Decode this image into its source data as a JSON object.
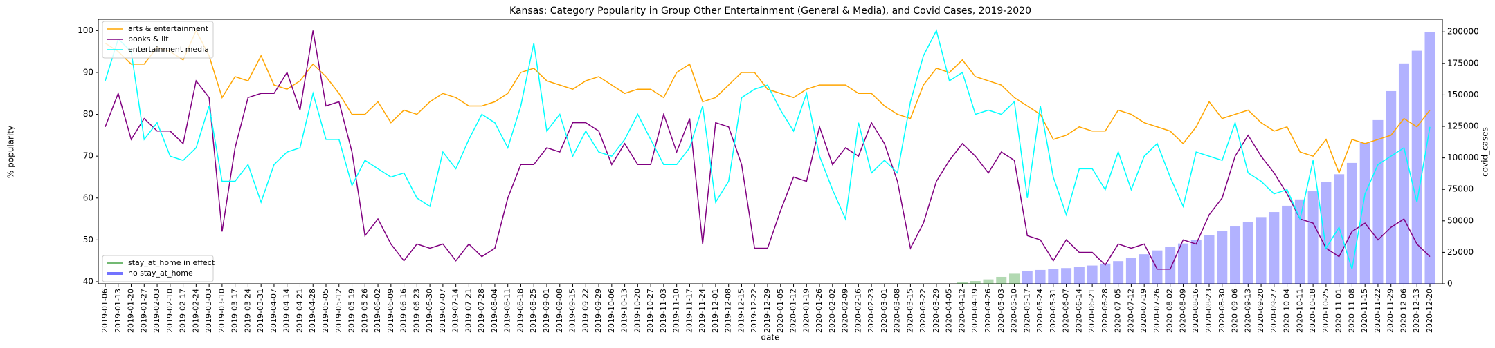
{
  "chart_data": {
    "type": "line",
    "title": "Kansas: Category Popularity in Group Other Entertainment (General & Media), and Covid Cases, 2019-2020",
    "xlabel": "date",
    "ylabel": "% popularity",
    "y2label": "covid_cases",
    "categories": [
      "2019-01-06",
      "2019-01-13",
      "2019-01-20",
      "2019-01-27",
      "2019-02-03",
      "2019-02-10",
      "2019-02-17",
      "2019-02-24",
      "2019-03-03",
      "2019-03-10",
      "2019-03-17",
      "2019-03-24",
      "2019-03-31",
      "2019-04-07",
      "2019-04-14",
      "2019-04-21",
      "2019-04-28",
      "2019-05-05",
      "2019-05-12",
      "2019-05-19",
      "2019-05-26",
      "2019-06-02",
      "2019-06-09",
      "2019-06-16",
      "2019-06-23",
      "2019-06-30",
      "2019-07-07",
      "2019-07-14",
      "2019-07-21",
      "2019-07-28",
      "2019-08-04",
      "2019-08-11",
      "2019-08-18",
      "2019-08-25",
      "2019-09-01",
      "2019-09-08",
      "2019-09-15",
      "2019-09-22",
      "2019-09-29",
      "2019-10-06",
      "2019-10-13",
      "2019-10-20",
      "2019-10-27",
      "2019-11-03",
      "2019-11-10",
      "2019-11-17",
      "2019-11-24",
      "2019-12-01",
      "2019-12-08",
      "2019-12-15",
      "2019-12-22",
      "2019-12-29",
      "2020-01-05",
      "2020-01-12",
      "2020-01-19",
      "2020-01-26",
      "2020-02-02",
      "2020-02-09",
      "2020-02-16",
      "2020-02-23",
      "2020-03-01",
      "2020-03-08",
      "2020-03-15",
      "2020-03-22",
      "2020-03-29",
      "2020-04-05",
      "2020-04-12",
      "2020-04-19",
      "2020-04-26",
      "2020-05-03",
      "2020-05-10",
      "2020-05-17",
      "2020-05-24",
      "2020-05-31",
      "2020-06-07",
      "2020-06-14",
      "2020-06-21",
      "2020-06-28",
      "2020-07-05",
      "2020-07-12",
      "2020-07-19",
      "2020-07-26",
      "2020-08-02",
      "2020-08-09",
      "2020-08-16",
      "2020-08-23",
      "2020-08-30",
      "2020-09-06",
      "2020-09-13",
      "2020-09-20",
      "2020-09-27",
      "2020-10-04",
      "2020-10-11",
      "2020-10-18",
      "2020-10-25",
      "2020-11-01",
      "2020-11-08",
      "2020-11-15",
      "2020-11-22",
      "2020-11-29",
      "2020-12-06",
      "2020-12-13",
      "2020-12-20"
    ],
    "ylim": [
      39.5,
      102.7
    ],
    "yticks": [
      40,
      50,
      60,
      70,
      80,
      90,
      100
    ],
    "y2lim": [
      0,
      210000
    ],
    "y2ticks": [
      0,
      25000,
      50000,
      75000,
      100000,
      125000,
      150000,
      175000,
      200000
    ],
    "series": [
      {
        "name": "arts & entertainment",
        "color": "#ffa500",
        "values": [
          97,
          95,
          92,
          92,
          96,
          95,
          93,
          100,
          94,
          84,
          89,
          88,
          94,
          87,
          86,
          88,
          92,
          89,
          85,
          80,
          80,
          83,
          78,
          81,
          80,
          83,
          85,
          84,
          82,
          82,
          83,
          85,
          90,
          91,
          88,
          87,
          86,
          88,
          89,
          87,
          85,
          86,
          86,
          84,
          90,
          92,
          83,
          84,
          87,
          90,
          90,
          86,
          85,
          84,
          86,
          87,
          87,
          87,
          85,
          85,
          82,
          80,
          79,
          87,
          91,
          90,
          93,
          89,
          88,
          87,
          84,
          82,
          80,
          74,
          75,
          77,
          76,
          76,
          81,
          80,
          78,
          77,
          76,
          73,
          77,
          83,
          79,
          80,
          81,
          78,
          76,
          77,
          71,
          70,
          74,
          66,
          74,
          73,
          74,
          75,
          79,
          77,
          81
        ]
      },
      {
        "name": "books & lit",
        "color": "#800080",
        "values": [
          77,
          85,
          74,
          79,
          76,
          76,
          73,
          88,
          84,
          52,
          72,
          84,
          85,
          85,
          90,
          81,
          100,
          82,
          83,
          71,
          51,
          55,
          49,
          45,
          49,
          48,
          49,
          45,
          49,
          46,
          48,
          60,
          68,
          68,
          72,
          71,
          78,
          78,
          76,
          68,
          73,
          68,
          68,
          80,
          71,
          79,
          49,
          78,
          77,
          68,
          48,
          48,
          57,
          65,
          64,
          77,
          68,
          72,
          70,
          78,
          73,
          64,
          48,
          54,
          64,
          69,
          73,
          70,
          66,
          71,
          69,
          51,
          50,
          45,
          50,
          47,
          47,
          44,
          49,
          48,
          49,
          43,
          43,
          50,
          49,
          56,
          60,
          70,
          75,
          70,
          66,
          61,
          55,
          54,
          48,
          46,
          52,
          54,
          50,
          53,
          55,
          49,
          46
        ]
      },
      {
        "name": "entertainment media",
        "color": "#00ffff",
        "values": [
          88,
          98,
          95,
          74,
          78,
          70,
          69,
          72,
          82,
          64,
          64,
          68,
          59,
          68,
          71,
          72,
          85,
          74,
          74,
          63,
          69,
          67,
          65,
          66,
          60,
          58,
          71,
          67,
          74,
          80,
          78,
          72,
          82,
          97,
          76,
          80,
          70,
          76,
          71,
          70,
          74,
          80,
          74,
          68,
          68,
          72,
          82,
          59,
          64,
          84,
          86,
          87,
          81,
          76,
          85,
          70,
          62,
          55,
          78,
          66,
          69,
          66,
          83,
          94,
          100,
          88,
          90,
          80,
          81,
          80,
          83,
          60,
          82,
          65,
          56,
          67,
          67,
          62,
          71,
          62,
          70,
          73,
          65,
          58,
          71,
          70,
          69,
          78,
          66,
          64,
          61,
          62,
          55,
          69,
          48,
          53,
          43,
          61,
          68,
          70,
          72,
          59,
          77
        ]
      },
      {
        "name": "stay_at_home in effect",
        "type": "bar",
        "axis": "y2",
        "color": "#008000",
        "values": [
          null,
          null,
          null,
          null,
          null,
          null,
          null,
          null,
          null,
          null,
          null,
          null,
          null,
          null,
          null,
          null,
          null,
          null,
          null,
          null,
          null,
          null,
          null,
          null,
          null,
          null,
          null,
          null,
          null,
          null,
          null,
          null,
          null,
          null,
          null,
          null,
          null,
          null,
          null,
          null,
          null,
          null,
          null,
          null,
          null,
          null,
          null,
          null,
          null,
          null,
          null,
          null,
          null,
          null,
          null,
          null,
          null,
          null,
          null,
          null,
          null,
          null,
          null,
          null,
          null,
          null,
          1600,
          2200,
          3500,
          5500,
          8000,
          null,
          null,
          null,
          null,
          null,
          null,
          null,
          null,
          null,
          null,
          null,
          null,
          null,
          null,
          null,
          null,
          null,
          null,
          null,
          null,
          null,
          null,
          null,
          null,
          null,
          null,
          null,
          null,
          null,
          null,
          null,
          null
        ]
      },
      {
        "name": "no stay_at_home",
        "type": "bar",
        "axis": "y2",
        "color": "#0000ff",
        "values": [
          null,
          null,
          null,
          null,
          null,
          null,
          null,
          null,
          null,
          null,
          null,
          null,
          null,
          null,
          null,
          null,
          null,
          null,
          null,
          null,
          null,
          null,
          null,
          null,
          null,
          null,
          null,
          null,
          null,
          null,
          null,
          null,
          null,
          null,
          null,
          null,
          null,
          null,
          null,
          null,
          null,
          null,
          null,
          null,
          null,
          null,
          null,
          null,
          null,
          null,
          null,
          null,
          null,
          null,
          null,
          null,
          null,
          null,
          null,
          null,
          null,
          null,
          null,
          null,
          null,
          null,
          null,
          null,
          null,
          null,
          null,
          10000,
          11000,
          11800,
          12500,
          13500,
          14500,
          16000,
          18000,
          20500,
          23500,
          26500,
          29500,
          32000,
          35000,
          38500,
          42000,
          45500,
          49000,
          53000,
          57000,
          62000,
          67000,
          74000,
          81000,
          87000,
          96000,
          112000,
          130000,
          153000,
          175000,
          185000,
          200000
        ]
      }
    ]
  }
}
